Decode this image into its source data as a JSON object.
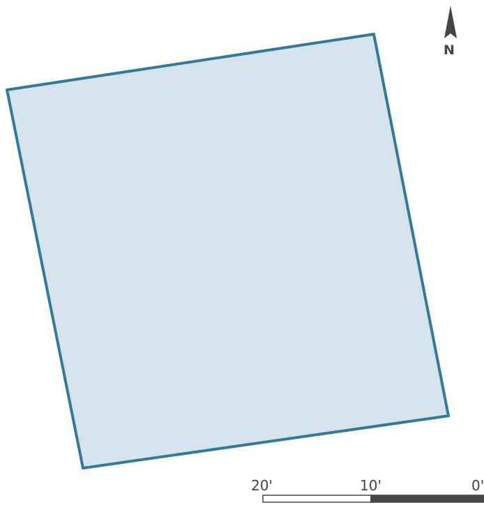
{
  "map": {
    "parcel_fill": "#d4e3ec",
    "parcel_stroke": "#337a99",
    "north_arrow": {
      "icon": "north-arrow-icon",
      "label": "N",
      "color": "#444444"
    },
    "scale_bar": {
      "labels": [
        "20'",
        "10'",
        "0'"
      ],
      "light_color": "#ffffff",
      "dark_color": "#444444"
    }
  }
}
